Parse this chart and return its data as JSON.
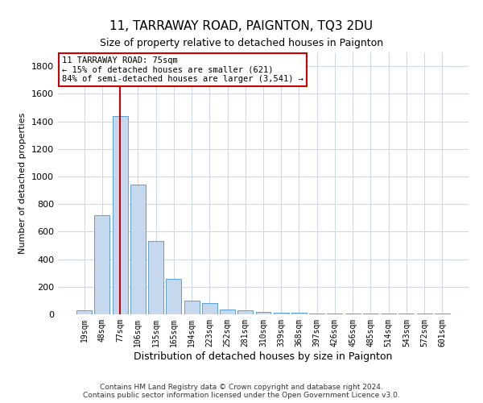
{
  "title": "11, TARRAWAY ROAD, PAIGNTON, TQ3 2DU",
  "subtitle": "Size of property relative to detached houses in Paignton",
  "xlabel": "Distribution of detached houses by size in Paignton",
  "ylabel": "Number of detached properties",
  "footer": "Contains HM Land Registry data © Crown copyright and database right 2024.\nContains public sector information licensed under the Open Government Licence v3.0.",
  "categories": [
    "19sqm",
    "48sqm",
    "77sqm",
    "106sqm",
    "135sqm",
    "165sqm",
    "194sqm",
    "223sqm",
    "252sqm",
    "281sqm",
    "310sqm",
    "339sqm",
    "368sqm",
    "397sqm",
    "426sqm",
    "456sqm",
    "485sqm",
    "514sqm",
    "543sqm",
    "572sqm",
    "601sqm"
  ],
  "values": [
    30,
    720,
    1440,
    940,
    530,
    260,
    100,
    80,
    35,
    28,
    20,
    12,
    10,
    5,
    5,
    5,
    5,
    5,
    5,
    5,
    5
  ],
  "bar_color": "#c5d8ed",
  "bar_edge_color": "#5a9fd4",
  "highlight_index": 2,
  "highlight_line_color": "#cc0000",
  "annotation_text": "11 TARRAWAY ROAD: 75sqm\n← 15% of detached houses are smaller (621)\n84% of semi-detached houses are larger (3,541) →",
  "annotation_box_color": "#ffffff",
  "annotation_box_edge_color": "#cc0000",
  "ylim": [
    0,
    1900
  ],
  "yticks": [
    0,
    200,
    400,
    600,
    800,
    1000,
    1200,
    1400,
    1600,
    1800
  ],
  "background_color": "#ffffff",
  "grid_color": "#d0d8e8",
  "title_fontsize": 11,
  "subtitle_fontsize": 9,
  "ylabel_fontsize": 8,
  "xlabel_fontsize": 9,
  "tick_fontsize": 8,
  "xtick_fontsize": 7,
  "footer_fontsize": 6.5,
  "annot_fontsize": 7.5
}
